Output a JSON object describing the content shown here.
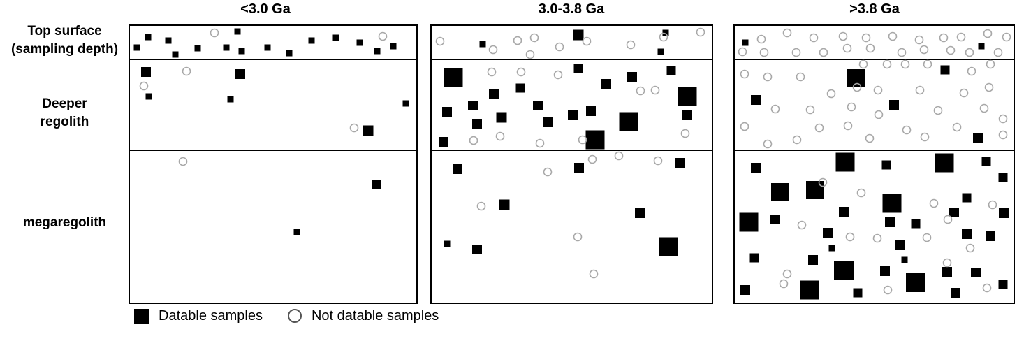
{
  "columns": [
    {
      "id": "lt30",
      "title": "<3.0 Ga"
    },
    {
      "id": "mid",
      "title": "3.0-3.8 Ga"
    },
    {
      "id": "gt38",
      "title": ">3.8 Ga"
    }
  ],
  "rows": {
    "top": "Top surface\n(sampling depth)",
    "top_line1": "Top surface",
    "top_line2": "(sampling depth)",
    "deeper_line1": "Deeper",
    "deeper_line2": "regolith",
    "mega": "megaregolith"
  },
  "legend": {
    "datable": "Datable samples",
    "not_datable": "Not datable samples"
  },
  "colors": {
    "datable": "#000000",
    "not_datable_stroke": "#a8a8a8",
    "frame": "#000000"
  }
}
